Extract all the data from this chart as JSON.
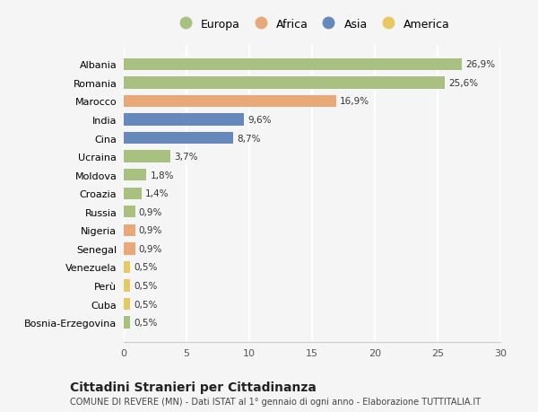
{
  "categories": [
    "Albania",
    "Romania",
    "Marocco",
    "India",
    "Cina",
    "Ucraina",
    "Moldova",
    "Croazia",
    "Russia",
    "Nigeria",
    "Senegal",
    "Venezuela",
    "Perù",
    "Cuba",
    "Bosnia-Erzegovina"
  ],
  "values": [
    26.9,
    25.6,
    16.9,
    9.6,
    8.7,
    3.7,
    1.8,
    1.4,
    0.9,
    0.9,
    0.9,
    0.5,
    0.5,
    0.5,
    0.5
  ],
  "continents": [
    "Europa",
    "Europa",
    "Africa",
    "Asia",
    "Asia",
    "Europa",
    "Europa",
    "Europa",
    "Europa",
    "Africa",
    "Africa",
    "America",
    "America",
    "America",
    "Europa"
  ],
  "continent_colors": {
    "Europa": "#a8c080",
    "Africa": "#e8a878",
    "Asia": "#6688bb",
    "America": "#e8c860"
  },
  "legend_order": [
    "Europa",
    "Africa",
    "Asia",
    "America"
  ],
  "title": "Cittadini Stranieri per Cittadinanza",
  "subtitle": "COMUNE DI REVERE (MN) - Dati ISTAT al 1° gennaio di ogni anno - Elaborazione TUTTITALIA.IT",
  "xlim": [
    0,
    30
  ],
  "xticks": [
    0,
    5,
    10,
    15,
    20,
    25,
    30
  ],
  "background_color": "#f5f5f5",
  "grid_color": "#ffffff",
  "bar_height": 0.65
}
